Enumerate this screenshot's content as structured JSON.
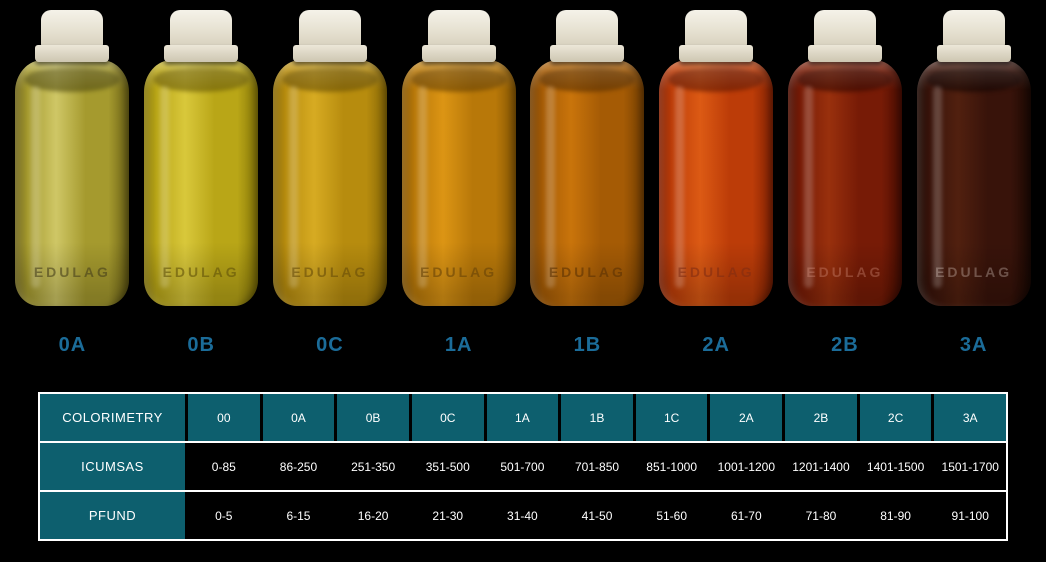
{
  "background": "#000000",
  "brand": {
    "watermark": "EDULAG"
  },
  "labels_color": "#1b6c99",
  "bottles": [
    {
      "label": "0A",
      "edge": "#6b6116",
      "mid": "#a59a2e",
      "light": "#cfc766",
      "dark": "#4f4a10",
      "watermark_color": "rgba(70,64,26,0.60)"
    },
    {
      "label": "0B",
      "edge": "#857507",
      "mid": "#b9a617",
      "light": "#d9c83b",
      "dark": "#665806",
      "watermark_color": "rgba(96,82,8,0.60)"
    },
    {
      "label": "0C",
      "edge": "#866706",
      "mid": "#b78c0e",
      "light": "#d7ab22",
      "dark": "#664e04",
      "watermark_color": "rgba(104,76,8,0.60)"
    },
    {
      "label": "1A",
      "edge": "#855603",
      "mid": "#b87809",
      "light": "#dc9514",
      "dark": "#643f02",
      "watermark_color": "rgba(104,66,6,0.60)"
    },
    {
      "label": "1B",
      "edge": "#743f02",
      "mid": "#a55b05",
      "light": "#c9740b",
      "dark": "#562e01",
      "watermark_color": "rgba(92,50,4,0.60)"
    },
    {
      "label": "2A",
      "edge": "#812103",
      "mid": "#bc3c08",
      "light": "#dc5a14",
      "dark": "#5e1702",
      "watermark_color": "rgba(130,45,18,0.60)"
    },
    {
      "label": "2B",
      "edge": "#490d02",
      "mid": "#771b06",
      "light": "#99300d",
      "dark": "#330801",
      "watermark_color": "rgba(225,160,140,0.32)"
    },
    {
      "label": "3A",
      "edge": "#1c0903",
      "mid": "#38130a",
      "light": "#51200f",
      "dark": "#120503",
      "watermark_color": "rgba(230,214,204,0.32)"
    }
  ],
  "table": {
    "header_bg": "#0d5f6e",
    "data_bg": "#000000",
    "text_color": "#ffffff",
    "border_color": "#ffffff",
    "rows": [
      {
        "label": "COLORIMETRY",
        "type": "header",
        "values": [
          "00",
          "0A",
          "0B",
          "0C",
          "1A",
          "1B",
          "1C",
          "2A",
          "2B",
          "2C",
          "3A"
        ]
      },
      {
        "label": "ICUMSAS",
        "type": "data",
        "values": [
          "0-85",
          "86-250",
          "251-350",
          "351-500",
          "501-700",
          "701-850",
          "851-1000",
          "1001-1200",
          "1201-1400",
          "1401-1500",
          "1501-1700"
        ]
      },
      {
        "label": "PFUND",
        "type": "data",
        "values": [
          "0-5",
          "6-15",
          "16-20",
          "21-30",
          "31-40",
          "41-50",
          "51-60",
          "61-70",
          "71-80",
          "81-90",
          "91-100"
        ]
      }
    ]
  },
  "chart_data": {
    "type": "table",
    "title": "",
    "columns": [
      "00",
      "0A",
      "0B",
      "0C",
      "1A",
      "1B",
      "1C",
      "2A",
      "2B",
      "2C",
      "3A"
    ],
    "rows": [
      {
        "name": "COLORIMETRY",
        "values": [
          "00",
          "0A",
          "0B",
          "0C",
          "1A",
          "1B",
          "1C",
          "2A",
          "2B",
          "2C",
          "3A"
        ]
      },
      {
        "name": "ICUMSAS",
        "values": [
          "0-85",
          "86-250",
          "251-350",
          "351-500",
          "501-700",
          "701-850",
          "851-1000",
          "1001-1200",
          "1201-1400",
          "1401-1500",
          "1501-1700"
        ]
      },
      {
        "name": "PFUND",
        "values": [
          "0-5",
          "6-15",
          "16-20",
          "21-30",
          "31-40",
          "41-50",
          "51-60",
          "61-70",
          "71-80",
          "81-90",
          "91-100"
        ]
      }
    ],
    "bottle_swatches": [
      {
        "label": "0A",
        "color": "#a59a2e"
      },
      {
        "label": "0B",
        "color": "#b9a617"
      },
      {
        "label": "0C",
        "color": "#b78c0e"
      },
      {
        "label": "1A",
        "color": "#b87809"
      },
      {
        "label": "1B",
        "color": "#a55b05"
      },
      {
        "label": "2A",
        "color": "#bc3c08"
      },
      {
        "label": "2B",
        "color": "#771b06"
      },
      {
        "label": "3A",
        "color": "#38130a"
      }
    ]
  }
}
